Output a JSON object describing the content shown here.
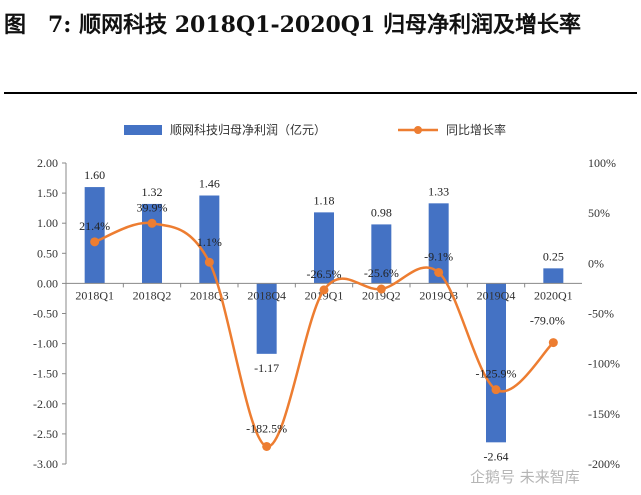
{
  "title": "图　7: 顺网科技 2018Q1-2020Q1 归母净利润及增长率",
  "watermark": "企鹅号 未来智库",
  "chart_data": {
    "type": "bar+line",
    "categories": [
      "2018Q1",
      "2018Q2",
      "2018Q3",
      "2018Q4",
      "2019Q1",
      "2019Q2",
      "2019Q3",
      "2019Q4",
      "2020Q1"
    ],
    "series": [
      {
        "name": "顺网科技归母净利润（亿元）",
        "type": "bar",
        "axis": "left",
        "values": [
          1.6,
          1.32,
          1.46,
          -1.17,
          1.18,
          0.98,
          1.33,
          -2.64,
          0.25
        ],
        "labels": [
          "1.60",
          "1.32",
          "1.46",
          "-1.17",
          "1.18",
          "0.98",
          "1.33",
          "-2.64",
          "0.25"
        ],
        "color": "#4472c4"
      },
      {
        "name": "同比增长率",
        "type": "line",
        "axis": "right",
        "values": [
          21.4,
          39.9,
          1.1,
          -182.5,
          -26.5,
          -25.6,
          -9.1,
          -125.9,
          -79.0
        ],
        "labels": [
          "21.4%",
          "39.9%",
          "1.1%",
          "-182.5%",
          "-26.5%",
          "-25.6%",
          "-9.1%",
          "-125.9%",
          "-79.0%"
        ],
        "color": "#ed7d31"
      }
    ],
    "left_axis": {
      "min": -3.0,
      "max": 2.0,
      "step": 0.5,
      "ticks": [
        "2.00",
        "1.50",
        "1.00",
        "0.50",
        "0.00",
        "-0.50",
        "-1.00",
        "-1.50",
        "-2.00",
        "-2.50",
        "-3.00"
      ]
    },
    "right_axis": {
      "min": -200,
      "max": 100,
      "step": 50,
      "ticks": [
        "100%",
        "50%",
        "0%",
        "-50%",
        "-100%",
        "-150%",
        "-200%"
      ]
    },
    "legend_position": "top",
    "grid": false
  }
}
